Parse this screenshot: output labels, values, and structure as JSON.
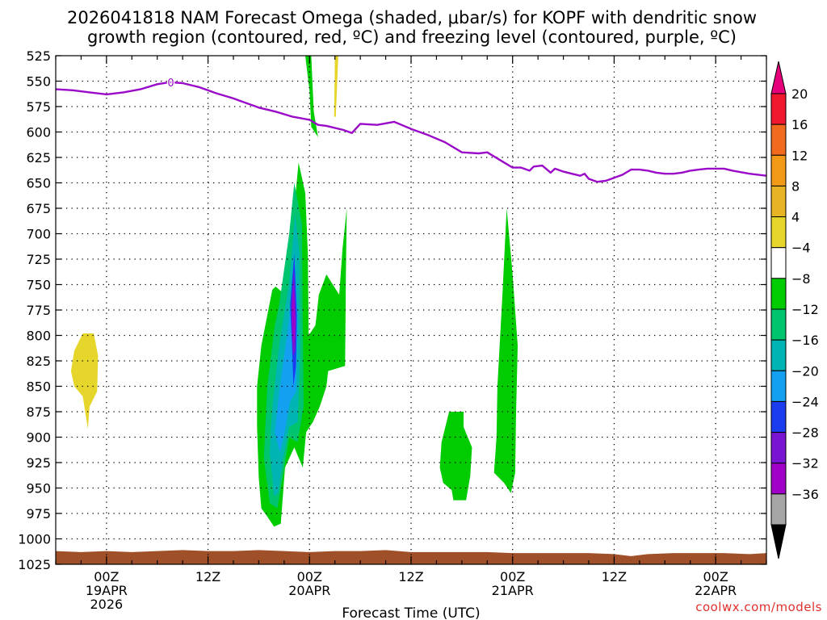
{
  "title": {
    "line1": "2026041818 NAM Forecast Omega (shaded, μbar/s) for KOPF with dendritic snow",
    "line2": "growth region (contoured, red, ºC) and freezing level (contoured, purple, ºC)"
  },
  "credit": "coolwx.com/models",
  "chart_data": {
    "type": "contour",
    "xlabel": "Forecast Time (UTC)",
    "ylabel": "",
    "x_units": "hours since 2026-04-18 18Z",
    "xlim": [
      0,
      84
    ],
    "ylim": [
      1025,
      525
    ],
    "y_ticks": [
      525,
      550,
      575,
      600,
      625,
      650,
      675,
      700,
      725,
      750,
      775,
      800,
      825,
      850,
      875,
      900,
      925,
      950,
      975,
      1000,
      1025
    ],
    "x_ticks": [
      {
        "x": 6,
        "line1": "00Z",
        "line2": "19APR",
        "line3": "2026"
      },
      {
        "x": 18,
        "line1": "12Z",
        "line2": "",
        "line3": ""
      },
      {
        "x": 30,
        "line1": "00Z",
        "line2": "20APR",
        "line3": ""
      },
      {
        "x": 42,
        "line1": "12Z",
        "line2": "",
        "line3": ""
      },
      {
        "x": 54,
        "line1": "00Z",
        "line2": "21APR",
        "line3": ""
      },
      {
        "x": 66,
        "line1": "12Z",
        "line2": "",
        "line3": ""
      },
      {
        "x": 78,
        "line1": "00Z",
        "line2": "22APR",
        "line3": ""
      }
    ],
    "grid": true,
    "colorbar": {
      "labels": [
        "20",
        "16",
        "12",
        "8",
        "4",
        "−4",
        "−8",
        "−12",
        "−16",
        "−20",
        "−24",
        "−28",
        "−32",
        "−36"
      ],
      "colors": [
        "#f0182e",
        "#f26a1e",
        "#f29a18",
        "#e6b424",
        "#e6d62c",
        "#ffffff",
        "#00cc00",
        "#00c46e",
        "#00b4b4",
        "#14a0f0",
        "#1c3cf0",
        "#7814d2",
        "#a000c8",
        "#a6a6a6"
      ],
      "top_arrow_color": "#e6007a",
      "bottom_arrow_color": "#000000"
    },
    "freezing_level_label": "0",
    "freezing_level": [
      [
        0,
        558
      ],
      [
        2,
        559
      ],
      [
        4,
        561
      ],
      [
        6,
        563
      ],
      [
        8,
        561
      ],
      [
        10,
        558
      ],
      [
        12,
        553
      ],
      [
        13.5,
        551
      ],
      [
        15,
        552
      ],
      [
        17,
        556
      ],
      [
        19,
        562
      ],
      [
        21,
        567
      ],
      [
        22,
        570
      ],
      [
        24,
        576
      ],
      [
        26,
        580
      ],
      [
        28,
        585
      ],
      [
        30,
        588
      ],
      [
        31,
        593
      ],
      [
        32,
        594
      ],
      [
        34,
        598
      ],
      [
        35,
        601
      ],
      [
        36,
        592
      ],
      [
        38,
        593
      ],
      [
        40,
        590
      ],
      [
        42,
        597
      ],
      [
        44,
        603
      ],
      [
        46,
        610
      ],
      [
        48,
        620
      ],
      [
        50,
        621
      ],
      [
        51,
        620
      ],
      [
        53,
        630
      ],
      [
        54,
        635
      ],
      [
        55,
        635
      ],
      [
        56,
        638
      ],
      [
        56.5,
        634
      ],
      [
        57.5,
        633
      ],
      [
        58.5,
        640
      ],
      [
        59,
        636
      ],
      [
        60,
        639
      ],
      [
        61,
        641
      ],
      [
        62,
        643
      ],
      [
        62.5,
        641
      ],
      [
        63,
        646
      ],
      [
        64,
        649
      ],
      [
        65,
        648
      ],
      [
        66,
        645
      ],
      [
        67,
        642
      ],
      [
        68,
        637
      ],
      [
        69,
        637
      ],
      [
        70,
        638
      ],
      [
        71,
        640
      ],
      [
        72,
        641
      ],
      [
        73,
        641
      ],
      [
        74,
        640
      ],
      [
        75,
        638
      ],
      [
        76,
        637
      ],
      [
        77,
        636
      ],
      [
        78,
        636
      ],
      [
        79,
        636
      ],
      [
        80,
        638
      ],
      [
        82,
        641
      ],
      [
        84,
        643
      ]
    ],
    "omega_regions": [
      {
        "series": "8 to 4",
        "color": "#e6d62c",
        "points": [
          [
            1.8,
            835
          ],
          [
            2.2,
            815
          ],
          [
            3.2,
            798
          ],
          [
            4.5,
            798
          ],
          [
            5.0,
            820
          ],
          [
            4.9,
            855
          ],
          [
            4.0,
            870
          ],
          [
            3.8,
            892
          ],
          [
            3.2,
            860
          ],
          [
            2.2,
            850
          ]
        ]
      },
      {
        "series": "8 to 4",
        "color": "#e6d62c",
        "points": [
          [
            33.0,
            525
          ],
          [
            33.4,
            525
          ],
          [
            33.1,
            585
          ],
          [
            32.9,
            585
          ]
        ]
      },
      {
        "series": "-4 to -8",
        "color": "#00cc00",
        "points": [
          [
            29.5,
            525
          ],
          [
            30.2,
            525
          ],
          [
            30.5,
            580
          ],
          [
            31.0,
            605
          ],
          [
            30.2,
            595
          ],
          [
            30.0,
            560
          ]
        ]
      },
      {
        "series": "-4 to -8",
        "color": "#00cc00",
        "points": [
          [
            23.8,
            850
          ],
          [
            24.3,
            810
          ],
          [
            25.6,
            755
          ],
          [
            26.0,
            752
          ],
          [
            27.1,
            760
          ],
          [
            27.9,
            700
          ],
          [
            28.7,
            630
          ],
          [
            29.5,
            660
          ],
          [
            29.8,
            720
          ],
          [
            29.9,
            800
          ],
          [
            30.7,
            790
          ],
          [
            31.1,
            760
          ],
          [
            32.0,
            740
          ],
          [
            33.5,
            760
          ],
          [
            33.9,
            715
          ],
          [
            34.4,
            675
          ],
          [
            34.3,
            740
          ],
          [
            34.2,
            830
          ],
          [
            32.2,
            835
          ],
          [
            32.0,
            850
          ],
          [
            31.2,
            870
          ],
          [
            30.4,
            885
          ],
          [
            29.6,
            895
          ],
          [
            29.2,
            930
          ],
          [
            28.2,
            910
          ],
          [
            27.1,
            930
          ],
          [
            26.6,
            985
          ],
          [
            25.8,
            988
          ],
          [
            25.0,
            978
          ],
          [
            24.3,
            970
          ],
          [
            24.0,
            940
          ],
          [
            23.8,
            890
          ]
        ]
      },
      {
        "series": "-4 to -8",
        "color": "#00cc00",
        "points": [
          [
            45.6,
            905
          ],
          [
            46.5,
            875
          ],
          [
            48.2,
            875
          ],
          [
            48.2,
            890
          ],
          [
            49.2,
            910
          ],
          [
            49.0,
            938
          ],
          [
            48.5,
            962
          ],
          [
            47.0,
            962
          ],
          [
            46.8,
            952
          ],
          [
            45.8,
            945
          ],
          [
            45.4,
            930
          ]
        ]
      },
      {
        "series": "-4 to -8",
        "color": "#00cc00",
        "points": [
          [
            51.8,
            935
          ],
          [
            52.1,
            900
          ],
          [
            52.2,
            850
          ],
          [
            52.8,
            760
          ],
          [
            53.3,
            675
          ],
          [
            54.0,
            740
          ],
          [
            54.6,
            810
          ],
          [
            54.4,
            880
          ],
          [
            54.3,
            935
          ],
          [
            53.8,
            955
          ],
          [
            53.0,
            945
          ]
        ]
      },
      {
        "series": "-8 to -12",
        "color": "#00c46e",
        "points": [
          [
            24.6,
            920
          ],
          [
            25.0,
            850
          ],
          [
            25.9,
            790
          ],
          [
            26.4,
            770
          ],
          [
            27.6,
            700
          ],
          [
            28.2,
            650
          ],
          [
            29.1,
            690
          ],
          [
            29.2,
            780
          ],
          [
            29.3,
            870
          ],
          [
            28.6,
            905
          ],
          [
            27.6,
            900
          ],
          [
            26.9,
            935
          ],
          [
            26.2,
            970
          ],
          [
            25.3,
            965
          ]
        ]
      },
      {
        "series": "-12 to -16",
        "color": "#00b4b4",
        "points": [
          [
            25.3,
            915
          ],
          [
            25.6,
            870
          ],
          [
            26.4,
            810
          ],
          [
            27.6,
            748
          ],
          [
            28.3,
            680
          ],
          [
            28.8,
            720
          ],
          [
            28.9,
            820
          ],
          [
            28.6,
            885
          ],
          [
            27.6,
            890
          ],
          [
            26.9,
            920
          ],
          [
            26.3,
            955
          ],
          [
            25.8,
            958
          ]
        ]
      },
      {
        "series": "-16 to -20",
        "color": "#14a0f0",
        "points": [
          [
            25.9,
            895
          ],
          [
            26.5,
            850
          ],
          [
            27.5,
            790
          ],
          [
            28.2,
            720
          ],
          [
            28.6,
            780
          ],
          [
            28.4,
            855
          ],
          [
            27.7,
            865
          ],
          [
            27.0,
            898
          ],
          [
            26.5,
            915
          ]
        ]
      },
      {
        "series": "-20 to -24",
        "color": "#1c3cf0",
        "points": [
          [
            27.7,
            770
          ],
          [
            28.2,
            720
          ],
          [
            28.5,
            780
          ],
          [
            28.4,
            830
          ],
          [
            28.1,
            850
          ],
          [
            27.9,
            805
          ]
        ]
      },
      {
        "series": "-24 to -28",
        "color": "#7814d2",
        "points": [
          [
            27.85,
            770
          ],
          [
            28.15,
            735
          ],
          [
            28.4,
            785
          ],
          [
            28.3,
            815
          ],
          [
            28.05,
            820
          ],
          [
            27.9,
            800
          ]
        ]
      },
      {
        "series": "-28 to -32",
        "color": "#a000c8",
        "points": [
          [
            27.95,
            772
          ],
          [
            28.15,
            748
          ],
          [
            28.3,
            790
          ],
          [
            28.2,
            808
          ],
          [
            28.05,
            805
          ]
        ]
      }
    ],
    "terrain": {
      "color": "#a05028",
      "surface": [
        [
          0,
          1012
        ],
        [
          3,
          1013
        ],
        [
          6,
          1012
        ],
        [
          9,
          1013
        ],
        [
          12,
          1012
        ],
        [
          15,
          1011
        ],
        [
          18,
          1012
        ],
        [
          21,
          1012
        ],
        [
          24,
          1011
        ],
        [
          27,
          1012
        ],
        [
          30,
          1013
        ],
        [
          33,
          1012
        ],
        [
          36,
          1012
        ],
        [
          39,
          1011
        ],
        [
          42,
          1013
        ],
        [
          45,
          1013
        ],
        [
          48,
          1013
        ],
        [
          51,
          1013
        ],
        [
          54,
          1014
        ],
        [
          57,
          1014
        ],
        [
          60,
          1014
        ],
        [
          63,
          1014
        ],
        [
          66,
          1015
        ],
        [
          68,
          1017
        ],
        [
          70,
          1015
        ],
        [
          73,
          1014
        ],
        [
          76,
          1014
        ],
        [
          79,
          1014
        ],
        [
          82,
          1015
        ],
        [
          84,
          1014
        ]
      ]
    }
  }
}
